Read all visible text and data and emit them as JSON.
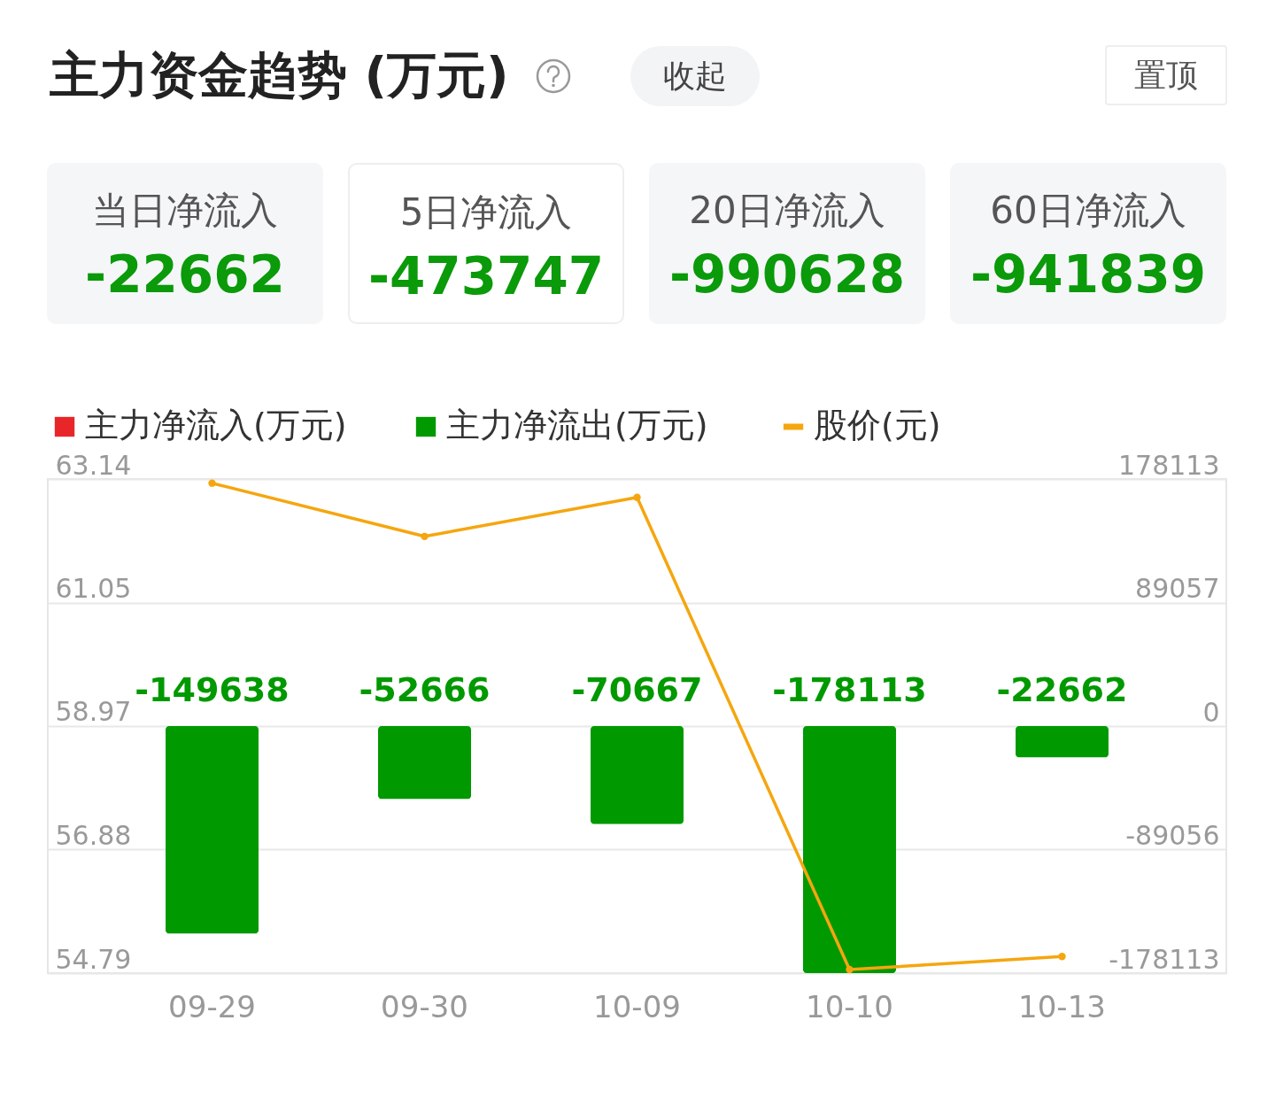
{
  "chart_data": [
    {
      "type": "other",
      "title": "主力资金趋势 (万元)",
      "annotations": [
        "收起",
        "置顶",
        "当日净流入",
        "-22662",
        "5日净流入",
        "-473747",
        "20日净流入",
        "-990628",
        "60日净流入",
        "-941839"
      ]
    },
    {
      "type": "bar",
      "categories": [
        "09-29",
        "09-30",
        "10-09",
        "10-10",
        "10-13"
      ],
      "series": [
        {
          "name": "主力净流入(万元)",
          "color": "#e8262a",
          "axis": "y2",
          "values": [
            null,
            null,
            null,
            null,
            null
          ]
        },
        {
          "name": "主力净流出(万元)",
          "color": "#009900",
          "axis": "y2",
          "values": [
            -149638,
            -52666,
            -70667,
            -178113,
            -22662
          ],
          "value_labels": [
            "-149638",
            "-52666",
            "-70667",
            "-178113",
            "-22662"
          ]
        },
        {
          "name": "股价(元)",
          "type": "line",
          "color": "#f5a60f",
          "axis": "y",
          "values": [
            63.07,
            62.17,
            62.83,
            54.85,
            55.07
          ]
        }
      ],
      "ylim": [
        54.79,
        63.14
      ],
      "yticks": [
        54.79,
        56.88,
        58.97,
        61.05,
        63.14
      ],
      "y2lim": [
        -178113,
        178113
      ],
      "y2ticks": [
        -178113,
        -89056,
        0,
        89057,
        178113
      ],
      "grid": "y",
      "legend": "top left",
      "marker": "circle"
    }
  ]
}
